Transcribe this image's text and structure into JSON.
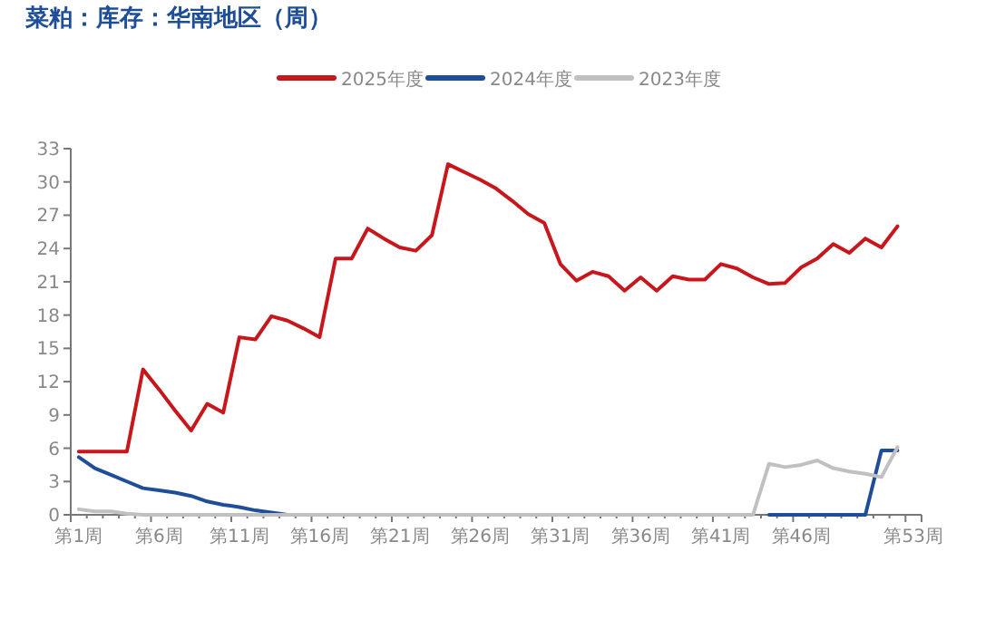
{
  "chart_data": {
    "type": "line",
    "title": "菜粕：库存：华南地区（周）",
    "categories": [
      "第1周",
      null,
      null,
      null,
      null,
      "第6周",
      null,
      null,
      null,
      null,
      "第11周",
      null,
      null,
      null,
      null,
      "第16周",
      null,
      null,
      null,
      null,
      "第21周",
      null,
      null,
      null,
      null,
      "第26周",
      null,
      null,
      null,
      null,
      "第31周",
      null,
      null,
      null,
      null,
      "第36周",
      null,
      null,
      null,
      null,
      "第41周",
      null,
      null,
      null,
      null,
      "第46周",
      null,
      null,
      null,
      null,
      null,
      null,
      "第53周"
    ],
    "series": [
      {
        "name": "2025年度",
        "color": "#c8161d",
        "values": [
          5.7,
          5.7,
          5.7,
          5.7,
          13.1,
          11.3,
          9.4,
          7.6,
          10.0,
          9.2,
          16.0,
          15.8,
          17.9,
          17.5,
          16.8,
          16.0,
          23.1,
          23.1,
          25.8,
          24.9,
          24.1,
          23.8,
          25.2,
          31.6,
          30.9,
          30.2,
          29.4,
          28.3,
          27.1,
          26.3,
          22.6,
          21.1,
          21.9,
          21.5,
          20.2,
          21.4,
          20.2,
          21.5,
          21.2,
          21.2,
          22.6,
          22.2,
          21.4,
          20.8,
          20.9,
          22.3,
          23.1,
          24.4,
          23.6,
          24.9,
          24.1,
          26.0,
          null
        ]
      },
      {
        "name": "2024年度",
        "color": "#1f4e99",
        "values": [
          5.2,
          4.2,
          3.6,
          3.0,
          2.4,
          2.2,
          2.0,
          1.7,
          1.2,
          0.9,
          0.7,
          0.4,
          0.2,
          0,
          null,
          null,
          null,
          null,
          null,
          null,
          null,
          null,
          null,
          null,
          null,
          null,
          null,
          null,
          null,
          null,
          null,
          null,
          null,
          null,
          null,
          null,
          null,
          null,
          null,
          null,
          null,
          null,
          null,
          0,
          0,
          0,
          0,
          0,
          0,
          0,
          5.8,
          5.8,
          null
        ]
      },
      {
        "name": "2023年度",
        "color": "#c0c0c0",
        "values": [
          0.5,
          0.3,
          0.3,
          0.1,
          0,
          0,
          0,
          0,
          0,
          0,
          0,
          0,
          0,
          0,
          0,
          0,
          0,
          0,
          0,
          0,
          0,
          0,
          0,
          0,
          0,
          0,
          0,
          0,
          0,
          0,
          0,
          0,
          0,
          0,
          0,
          0,
          0,
          0,
          0,
          0,
          0,
          0,
          0,
          4.6,
          4.3,
          4.5,
          4.9,
          4.2,
          3.9,
          3.7,
          3.4,
          6.1,
          null
        ]
      }
    ],
    "ylim": [
      0,
      33
    ],
    "yticks": [
      0,
      3,
      6,
      9,
      12,
      15,
      18,
      21,
      24,
      27,
      30,
      33
    ],
    "grid": false,
    "legend": "top",
    "marker": "none",
    "line_style": "solid"
  }
}
